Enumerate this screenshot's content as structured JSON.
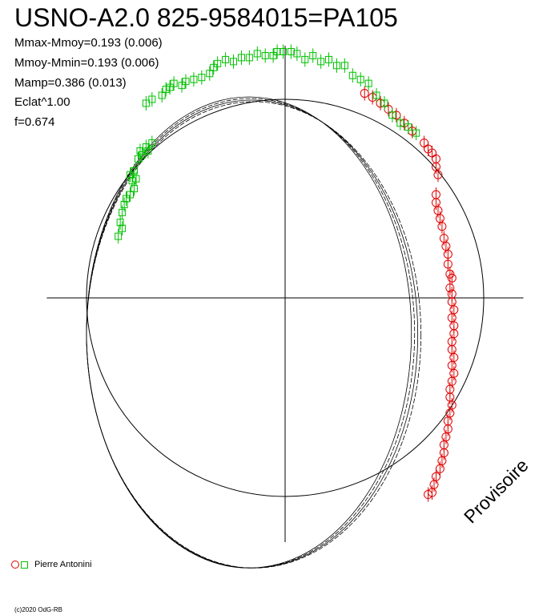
{
  "header": {
    "title": "USNO-A2.0 825-9584015=PA105",
    "stats": [
      "Mmax-Mmoy=0.193 (0.006)",
      "Mmoy-Mmin=0.193 (0.006)",
      "Mamp=0.386 (0.013)",
      "Eclat^1.00",
      "f=0.674"
    ]
  },
  "watermark": "Provisoire",
  "legend": {
    "observer": "Pierre Antonini"
  },
  "copyright": "(c)2020 OdG-RB",
  "colors": {
    "red": "#e00000",
    "green": "#00c000",
    "axes": "#000000"
  },
  "chart_data": {
    "type": "scatter",
    "projection": "polar",
    "reference_circle_radius": 1.0,
    "fit_curve": {
      "center_x": -0.17,
      "center_y": -0.18,
      "semi_axis_x": 0.83,
      "semi_axis_y": 1.18,
      "band_copies": 4
    },
    "series": [
      {
        "name": "Pierre Antonini",
        "marker": "circle",
        "color": "#e00000",
        "x": [
          0.4,
          0.44,
          0.48,
          0.52,
          0.56,
          0.6,
          0.64,
          0.7,
          0.72,
          0.74,
          0.76,
          0.76,
          0.77,
          0.76,
          0.76,
          0.77,
          0.78,
          0.79,
          0.8,
          0.81,
          0.82,
          0.82,
          0.83,
          0.84,
          0.83,
          0.84,
          0.84,
          0.85,
          0.84,
          0.85,
          0.85,
          0.84,
          0.84,
          0.85,
          0.84,
          0.85,
          0.84,
          0.83,
          0.83,
          0.84,
          0.83,
          0.82,
          0.82,
          0.81,
          0.8,
          0.8,
          0.79,
          0.78,
          0.76,
          0.75,
          0.74,
          0.72
        ],
        "y": [
          1.03,
          1.01,
          0.98,
          0.95,
          0.92,
          0.88,
          0.84,
          0.78,
          0.75,
          0.73,
          0.7,
          0.66,
          0.62,
          0.52,
          0.48,
          0.44,
          0.4,
          0.36,
          0.3,
          0.26,
          0.22,
          0.17,
          0.12,
          0.1,
          0.05,
          0.02,
          -0.02,
          -0.06,
          -0.1,
          -0.14,
          -0.18,
          -0.22,
          -0.26,
          -0.3,
          -0.34,
          -0.38,
          -0.42,
          -0.46,
          -0.5,
          -0.54,
          -0.58,
          -0.62,
          -0.66,
          -0.7,
          -0.74,
          -0.78,
          -0.82,
          -0.86,
          -0.9,
          -0.94,
          -0.98,
          -0.99
        ]
      },
      {
        "name": "Pierre Antonini",
        "marker": "square",
        "color": "#00c000",
        "x": [
          -0.84,
          -0.82,
          -0.83,
          -0.82,
          -0.81,
          -0.8,
          -0.78,
          -0.76,
          -0.77,
          -0.75,
          -0.78,
          -0.76,
          -0.74,
          -0.73,
          -0.72,
          -0.7,
          -0.69,
          -0.67,
          -0.7,
          -0.67,
          -0.62,
          -0.6,
          -0.58,
          -0.56,
          -0.52,
          -0.5,
          -0.46,
          -0.42,
          -0.38,
          -0.36,
          -0.34,
          -0.3,
          -0.26,
          -0.22,
          -0.18,
          -0.14,
          -0.1,
          -0.06,
          -0.04,
          -0.01,
          0.03,
          0.06,
          0.1,
          0.14,
          0.18,
          0.22,
          0.26,
          0.3,
          0.34,
          0.38,
          0.42,
          0.46,
          0.5,
          0.54,
          0.58,
          0.62,
          0.66
        ],
        "y": [
          0.31,
          0.35,
          0.38,
          0.43,
          0.47,
          0.5,
          0.52,
          0.55,
          0.59,
          0.6,
          0.62,
          0.64,
          0.7,
          0.74,
          0.72,
          0.76,
          0.74,
          0.78,
          0.98,
          1.0,
          1.02,
          1.05,
          1.06,
          1.08,
          1.07,
          1.09,
          1.1,
          1.11,
          1.13,
          1.16,
          1.18,
          1.2,
          1.19,
          1.21,
          1.21,
          1.23,
          1.22,
          1.22,
          1.24,
          1.24,
          1.24,
          1.23,
          1.2,
          1.22,
          1.19,
          1.2,
          1.17,
          1.17,
          1.12,
          1.1,
          1.08,
          1.02,
          0.98,
          0.92,
          0.88,
          0.86,
          0.83
        ]
      }
    ]
  }
}
